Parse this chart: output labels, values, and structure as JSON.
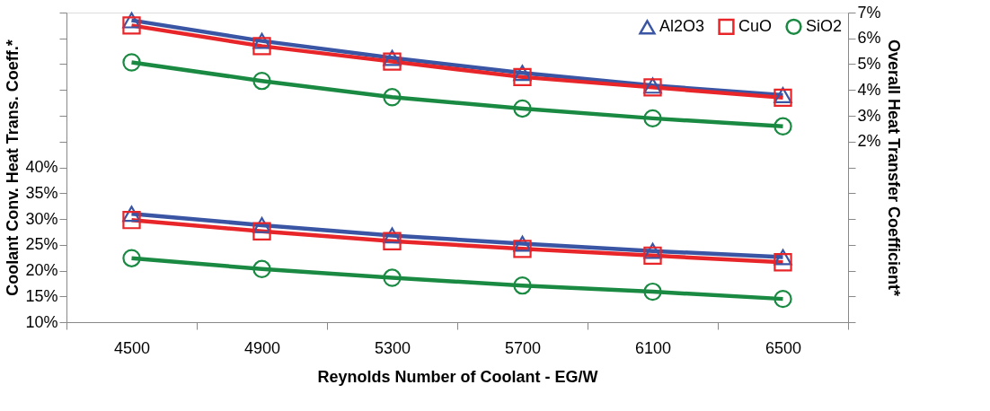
{
  "chart_data": {
    "type": "line",
    "xlabel": "Reynolds Number of Coolant - EG/W",
    "ylabel": "Coolant Conv. Heat Trans. Coeff.*",
    "y2label": "Overall Heat Transfer Coefficient*",
    "categories": [
      "4500",
      "4900",
      "5300",
      "5700",
      "6100",
      "6500"
    ],
    "series": [
      {
        "name": "Al2O3",
        "color": "#3a55a4",
        "marker": "triangle",
        "values": [
          31.0,
          28.8,
          26.8,
          25.2,
          23.8,
          22.6
        ]
      },
      {
        "name": "CuO",
        "color": "#e8262a",
        "marker": "square",
        "values": [
          29.8,
          27.6,
          25.7,
          24.2,
          22.9,
          21.6
        ]
      },
      {
        "name": "SiO2",
        "color": "#1a8a43",
        "marker": "circle",
        "values": [
          22.4,
          20.3,
          18.6,
          17.1,
          15.9,
          14.5
        ]
      },
      {
        "color": "#3a55a4",
        "marker": "triangle",
        "axis": "y2",
        "values": [
          6.7,
          5.9,
          5.24,
          4.66,
          4.17,
          3.8
        ]
      },
      {
        "color": "#e8262a",
        "marker": "square",
        "axis": "y2",
        "values": [
          6.5,
          5.7,
          5.1,
          4.5,
          4.1,
          3.7
        ]
      },
      {
        "color": "#1a8a43",
        "marker": "circle",
        "axis": "y2",
        "values": [
          5.07,
          4.35,
          3.72,
          3.28,
          2.9,
          2.59
        ]
      }
    ],
    "ylim": [
      10,
      70
    ],
    "yticks": [
      {
        "value": 10,
        "label": "10%"
      },
      {
        "value": 15,
        "label": "15%"
      },
      {
        "value": 20,
        "label": "20%"
      },
      {
        "value": 25,
        "label": "25%"
      },
      {
        "value": 30,
        "label": "30%"
      },
      {
        "value": 35,
        "label": "35%"
      },
      {
        "value": 40,
        "label": "40%"
      },
      {
        "value": 45,
        "label": null
      },
      {
        "value": 50,
        "label": null
      },
      {
        "value": 55,
        "label": null
      },
      {
        "value": 60,
        "label": null
      },
      {
        "value": 65,
        "label": null
      },
      {
        "value": 70,
        "label": null
      }
    ],
    "y2lim": [
      -5,
      7
    ],
    "y2ticks": [
      {
        "value": -5,
        "label": null
      },
      {
        "value": -4,
        "label": null
      },
      {
        "value": -3,
        "label": null
      },
      {
        "value": -2,
        "label": null
      },
      {
        "value": -1,
        "label": null
      },
      {
        "value": 0,
        "label": null
      },
      {
        "value": 1,
        "label": null
      },
      {
        "value": 2,
        "label": "2%"
      },
      {
        "value": 3,
        "label": "3%"
      },
      {
        "value": 4,
        "label": "4%"
      },
      {
        "value": 5,
        "label": "5%"
      },
      {
        "value": 6,
        "label": "6%"
      },
      {
        "value": 7,
        "label": "7%"
      }
    ],
    "legend": "top right",
    "grid": false,
    "line_style": "solid"
  }
}
